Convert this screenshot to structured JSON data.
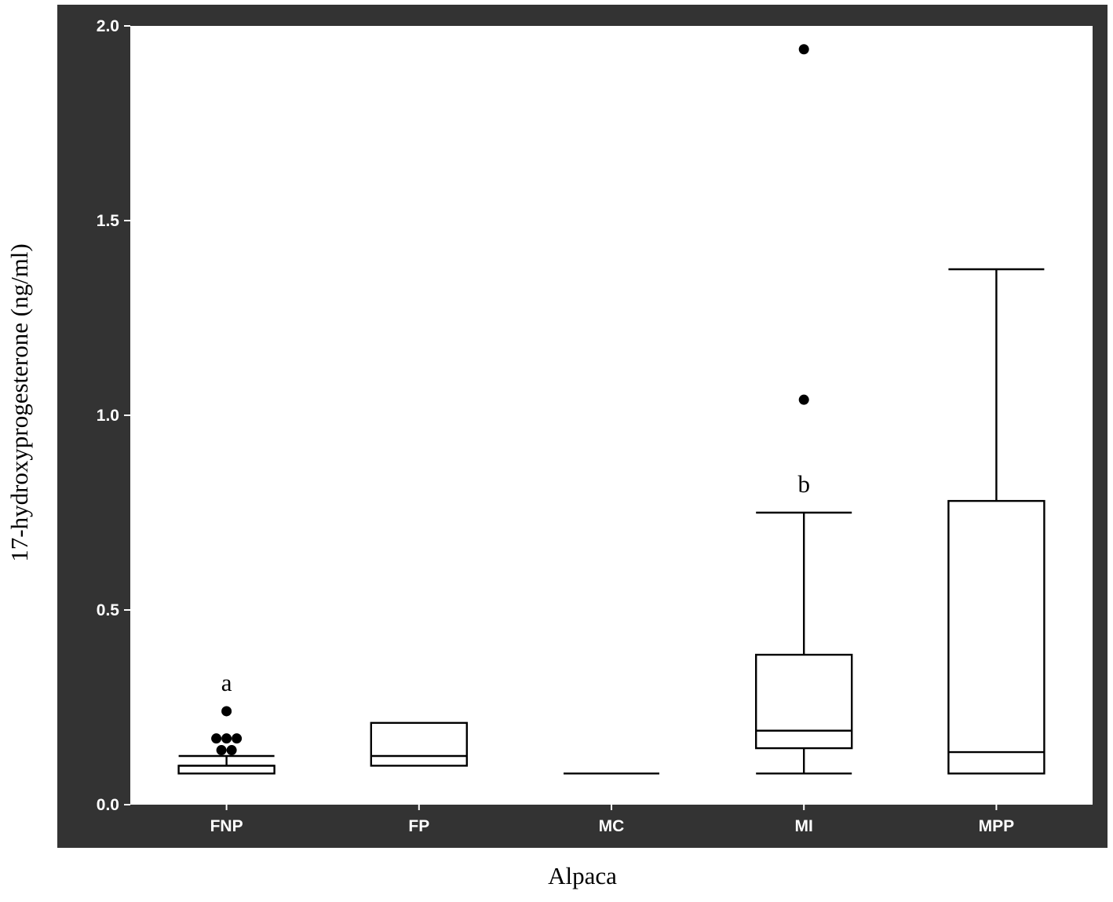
{
  "chart_data": {
    "type": "box",
    "xlabel": "Alpaca",
    "ylabel": "17-hydroxyprogesterone  (ng/ml)",
    "ylim": [
      0,
      2.0
    ],
    "yticks": [
      "0.0",
      "0.5",
      "1.0",
      "1.5",
      "2.0"
    ],
    "ytick_values": [
      0,
      0.5,
      1.0,
      1.5,
      2.0
    ],
    "categories": [
      "FNP",
      "FP",
      "MC",
      "MI",
      "MPP"
    ],
    "boxes": [
      {
        "category": "FNP",
        "whisker_low": 0.08,
        "q1": 0.08,
        "median": 0.1,
        "q3": 0.1,
        "whisker_high": 0.125,
        "outliers": [
          0.24,
          0.17,
          0.17,
          0.17,
          0.14,
          0.14
        ],
        "annotation": "a"
      },
      {
        "category": "FP",
        "whisker_low": 0.1,
        "q1": 0.1,
        "median": 0.125,
        "q3": 0.21,
        "whisker_high": 0.21,
        "outliers": [],
        "annotation": ""
      },
      {
        "category": "MC",
        "whisker_low": 0.08,
        "q1": 0.08,
        "median": 0.08,
        "q3": 0.08,
        "whisker_high": 0.08,
        "outliers": [],
        "annotation": ""
      },
      {
        "category": "MI",
        "whisker_low": 0.08,
        "q1": 0.145,
        "median": 0.19,
        "q3": 0.385,
        "whisker_high": 0.75,
        "outliers": [
          1.04,
          1.94
        ],
        "annotation": "b"
      },
      {
        "category": "MPP",
        "whisker_low": 0.08,
        "q1": 0.08,
        "median": 0.135,
        "q3": 0.78,
        "whisker_high": 1.375,
        "outliers": [],
        "annotation": ""
      }
    ],
    "colors": {
      "frame": "#333333",
      "plot_background": "#ffffff",
      "marks": "#000000"
    }
  }
}
